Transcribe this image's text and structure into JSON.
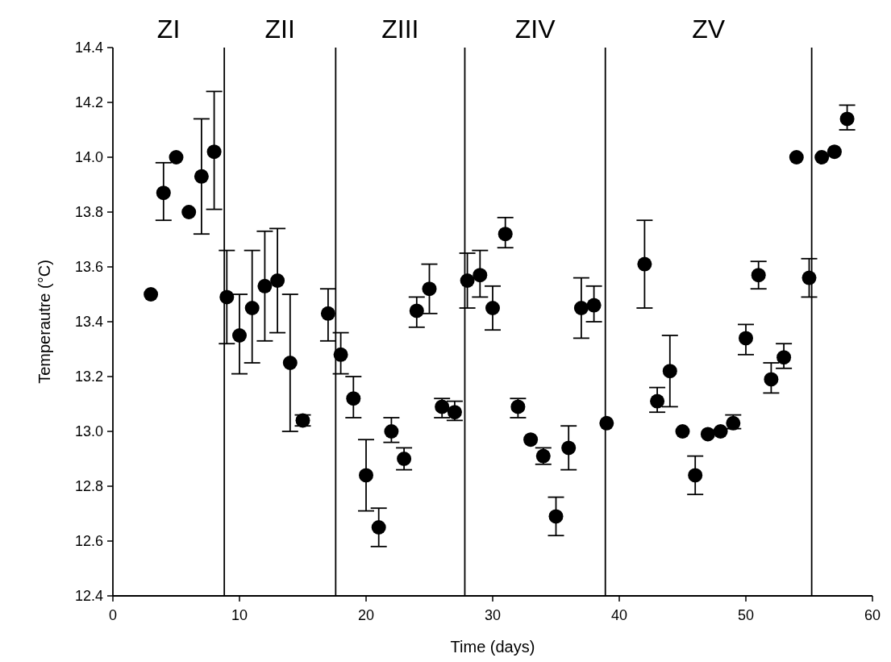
{
  "chart_data": {
    "type": "scatter",
    "xlabel": "Time (days)",
    "ylabel": "Temperautre (°C)",
    "marker": "circle",
    "grid": false,
    "xlim": [
      0,
      60
    ],
    "xticks": [
      0,
      10,
      20,
      30,
      40,
      50,
      60
    ],
    "ylim": [
      12.4,
      14.4
    ],
    "yticks": [
      12.4,
      12.6,
      12.8,
      {
        "value": 13,
        "label": "13.0"
      },
      13.2,
      13.4,
      13.6,
      13.8,
      {
        "value": 14,
        "label": "14.0"
      },
      14.2,
      14.4
    ],
    "annotations": [
      "ZI",
      "ZII",
      "ZIII",
      "ZIV",
      "ZV"
    ],
    "ref_lines": [
      {
        "axis": "x",
        "value": 8.8,
        "color": "#000000"
      },
      {
        "axis": "x",
        "value": 17.6,
        "color": "#000000"
      },
      {
        "axis": "x",
        "value": 27.8,
        "color": "#000000"
      },
      {
        "axis": "x",
        "value": 38.9,
        "color": "#000000"
      },
      {
        "axis": "x",
        "value": 55.2,
        "color": "#000000"
      }
    ],
    "series": [
      {
        "color": "#000000",
        "x": [
          3,
          4,
          5,
          6,
          7,
          8,
          9,
          10,
          11,
          12,
          13,
          14,
          15,
          17,
          18,
          19,
          20,
          21,
          22,
          23,
          24,
          25,
          26,
          27,
          28,
          29,
          30,
          31,
          32,
          33,
          34,
          35,
          36,
          37,
          38,
          39,
          42,
          43,
          44,
          45,
          46,
          47,
          48,
          49,
          50,
          51,
          52,
          53,
          54,
          55,
          56,
          57,
          58
        ],
        "values": [
          13.5,
          13.87,
          14.0,
          13.8,
          13.93,
          14.02,
          13.49,
          13.35,
          13.45,
          13.53,
          13.55,
          13.25,
          13.04,
          13.43,
          13.28,
          13.12,
          12.84,
          12.65,
          13.0,
          12.9,
          13.44,
          13.52,
          13.09,
          13.07,
          13.55,
          13.57,
          13.45,
          13.72,
          13.09,
          12.97,
          12.91,
          12.69,
          12.94,
          13.45,
          13.46,
          13.03,
          13.61,
          13.11,
          13.22,
          13.0,
          12.84,
          12.99,
          13.0,
          13.03,
          13.34,
          13.57,
          13.19,
          13.27,
          14.0,
          13.56,
          14.0,
          14.02,
          14.14
        ],
        "errors": [
          null,
          [
            13.77,
            13.98
          ],
          null,
          null,
          [
            13.72,
            14.14
          ],
          [
            13.81,
            14.24
          ],
          [
            13.32,
            13.66
          ],
          [
            13.21,
            13.5
          ],
          [
            13.25,
            13.66
          ],
          [
            13.33,
            13.73
          ],
          [
            13.36,
            13.74
          ],
          [
            13.0,
            13.5
          ],
          [
            13.02,
            13.06
          ],
          [
            13.33,
            13.52
          ],
          [
            13.21,
            13.36
          ],
          [
            13.05,
            13.2
          ],
          [
            12.71,
            12.97
          ],
          [
            12.58,
            12.72
          ],
          [
            12.96,
            13.05
          ],
          [
            12.86,
            12.94
          ],
          [
            13.38,
            13.49
          ],
          [
            13.43,
            13.61
          ],
          [
            13.05,
            13.12
          ],
          [
            13.04,
            13.11
          ],
          [
            13.45,
            13.65
          ],
          [
            13.49,
            13.66
          ],
          [
            13.37,
            13.53
          ],
          [
            13.67,
            13.78
          ],
          [
            13.05,
            13.12
          ],
          null,
          [
            12.88,
            12.94
          ],
          [
            12.62,
            12.76
          ],
          [
            12.86,
            13.02
          ],
          [
            13.34,
            13.56
          ],
          [
            13.4,
            13.53
          ],
          null,
          [
            13.45,
            13.77
          ],
          [
            13.07,
            13.16
          ],
          [
            13.09,
            13.35
          ],
          null,
          [
            12.77,
            12.91
          ],
          null,
          null,
          [
            13.01,
            13.06
          ],
          [
            13.28,
            13.39
          ],
          [
            13.52,
            13.62
          ],
          [
            13.14,
            13.25
          ],
          [
            13.23,
            13.32
          ],
          null,
          [
            13.49,
            13.63
          ],
          null,
          null,
          [
            14.1,
            14.19
          ]
        ]
      }
    ]
  }
}
